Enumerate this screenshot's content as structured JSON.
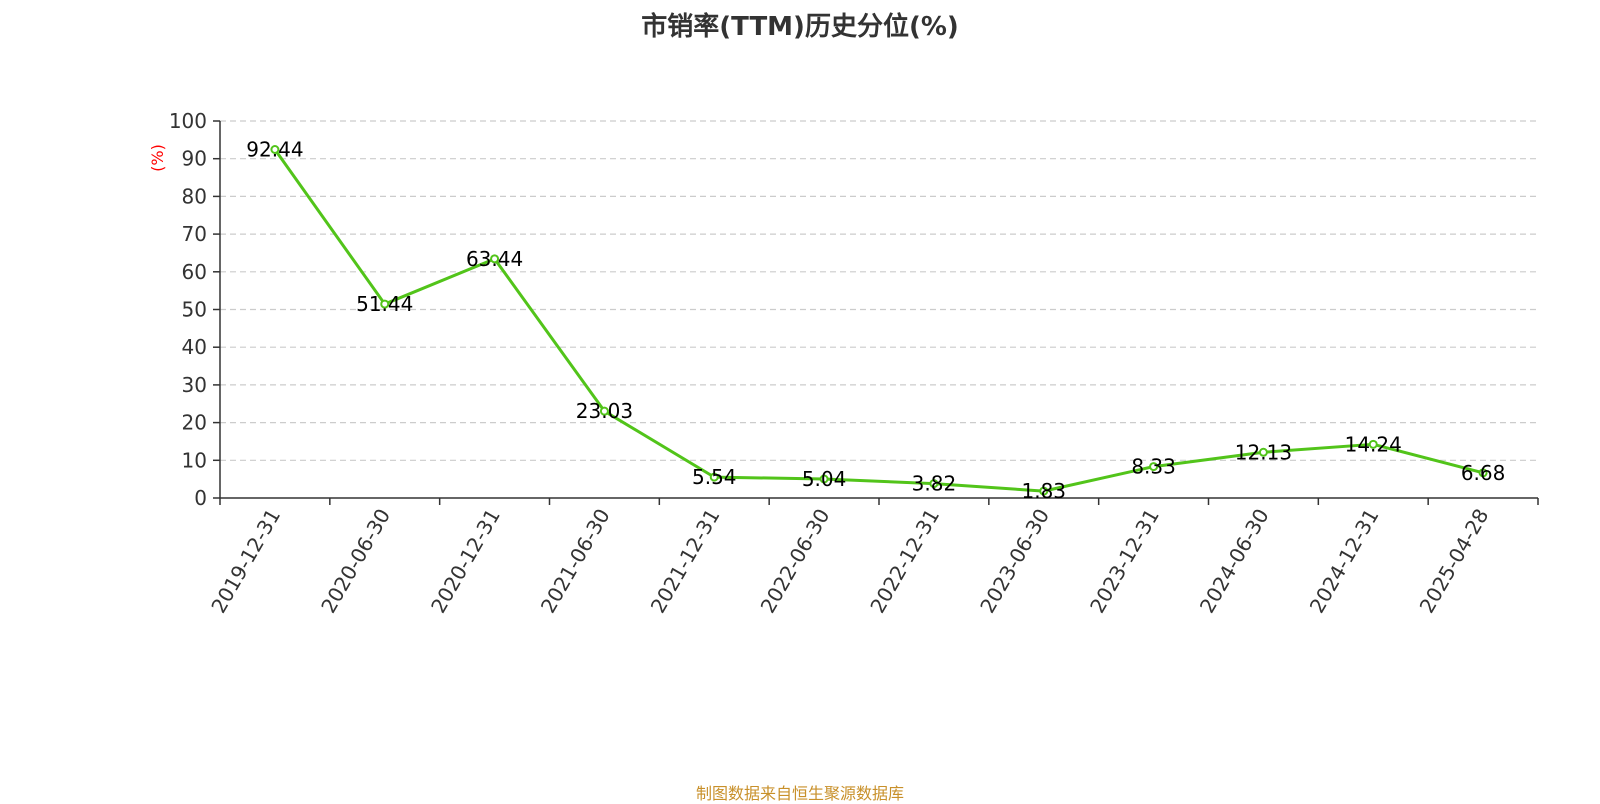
{
  "title": "市销率(TTM)历史分位(%)",
  "source": "制图数据来自恒生聚源数据库",
  "colors": {
    "line": "#52c41a",
    "axis": "#333333",
    "grid": "#cccccc",
    "ylabel": "#ff0000",
    "source": "#c8902a"
  },
  "chart_data": {
    "type": "line",
    "title": "市销率(TTM)历史分位(%)",
    "ylabel": "(%)",
    "xlabel": "",
    "ylim": [
      0,
      100
    ],
    "yticks": [
      0,
      10,
      20,
      30,
      40,
      50,
      60,
      70,
      80,
      90,
      100
    ],
    "grid": true,
    "categories": [
      "2019-12-31",
      "2020-06-30",
      "2020-12-31",
      "2021-06-30",
      "2021-12-31",
      "2022-06-30",
      "2022-12-31",
      "2023-06-30",
      "2023-12-31",
      "2024-06-30",
      "2024-12-31",
      "2025-04-28"
    ],
    "series": [
      {
        "values": [
          92.44,
          51.44,
          63.44,
          23.03,
          5.54,
          5.04,
          3.82,
          1.83,
          8.33,
          12.13,
          14.24,
          6.68
        ],
        "labels": [
          "92.44",
          "51.44",
          "63.44",
          "23.03",
          "5.54",
          "5.04",
          "3.82",
          "1.83",
          "8.33",
          "12.13",
          "14.24",
          "6.68"
        ]
      }
    ]
  }
}
